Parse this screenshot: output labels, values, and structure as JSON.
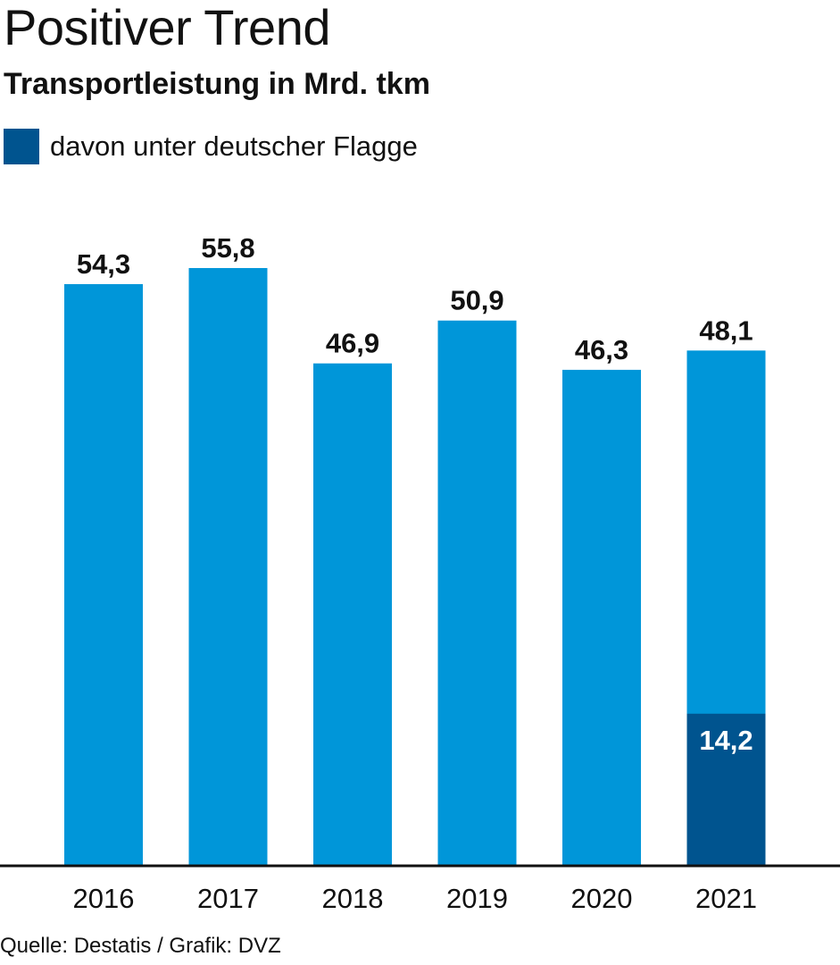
{
  "title": "Positiver Trend",
  "subtitle": "Transportleistung in Mrd. tkm",
  "legend": {
    "label": "davon unter deutscher Flagge",
    "color": "#00548f"
  },
  "source": "Quelle: Destatis / Grafik: DVZ",
  "colors": {
    "total": "#0096d9",
    "german_flag": "#00548f",
    "axis": "#111111"
  },
  "chart_data": {
    "type": "bar",
    "title": "Positiver Trend",
    "subtitle": "Transportleistung in Mrd. tkm",
    "categories": [
      "2016",
      "2017",
      "2018",
      "2019",
      "2020",
      "2021"
    ],
    "values": [
      54.3,
      55.8,
      46.9,
      50.9,
      46.3,
      48.1
    ],
    "value_labels": [
      "54,3",
      "55,8",
      "46,9",
      "50,9",
      "46,3",
      "48,1"
    ],
    "series": [
      {
        "values": [
          54.3,
          55.8,
          46.9,
          50.9,
          46.3,
          48.1
        ]
      },
      {
        "name": "davon unter deutscher Flagge",
        "values": [
          null,
          null,
          null,
          null,
          null,
          14.2
        ],
        "labels": [
          null,
          null,
          null,
          null,
          null,
          "14,2"
        ]
      }
    ],
    "ylim": [
      0,
      55.8
    ],
    "grid": false,
    "legend_position": "top-left"
  }
}
